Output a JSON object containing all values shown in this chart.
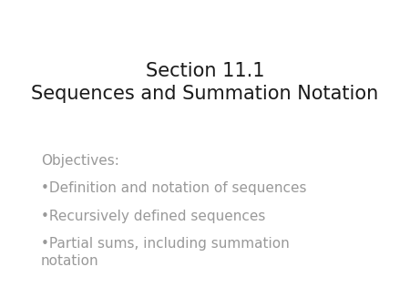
{
  "background_color": "#ffffff",
  "title_line1": "Section 11.1",
  "title_line2": "Sequences and Summation Notation",
  "title_color": "#1a1a1a",
  "title_fontsize": 15,
  "title_fontweight": "normal",
  "objectives_label": "Objectives:",
  "objectives_color": "#999999",
  "objectives_fontsize": 11,
  "bullet_items": [
    "Definition and notation of sequences",
    "Recursively defined sequences",
    "Partial sums, including summation\nnotation"
  ],
  "bullet_color": "#999999",
  "bullet_fontsize": 11,
  "bullet_char": "•",
  "fig_width": 4.5,
  "fig_height": 3.38,
  "dpi": 100
}
